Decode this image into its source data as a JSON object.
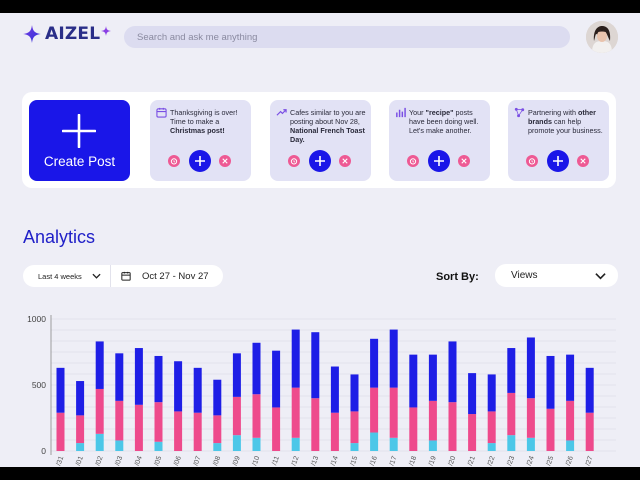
{
  "header": {
    "brand": "AIZEL",
    "search_placeholder": "Search and ask me anything"
  },
  "icons": {
    "logo": "sparkle-logo-icon",
    "avatar": "user-avatar",
    "create": "plus-icon",
    "alarm": "alarm-clock-icon",
    "add": "plus-icon",
    "dismiss": "close-icon",
    "calendar": "calendar-icon",
    "chevron": "chevron-down-icon"
  },
  "colors": {
    "brand_blue": "#1a16e8",
    "accent_pink": "#ee5a94",
    "title_blue": "#2020c8",
    "series_blue": "#1e1ee6",
    "series_pink": "#ee4a8c",
    "series_cyan": "#4cc7e8"
  },
  "create_post": {
    "label": "Create Post"
  },
  "suggestions": [
    {
      "icon": "calendar-icon",
      "pre": "Thanksgiving is over! Time to make a ",
      "bold": "Christmas post!",
      "post": ""
    },
    {
      "icon": "trending-up-icon",
      "pre": "Cafes similar to you are posting about Nov 28, ",
      "bold": "National French Toast Day.",
      "post": ""
    },
    {
      "icon": "bar-chart-icon",
      "pre": "Your ",
      "bold": "\"recipe\"",
      "post": " posts have been doing well. Let's make another."
    },
    {
      "icon": "network-icon",
      "pre": "Partnering with ",
      "bold": "other brands",
      "post": " can help promote your business."
    }
  ],
  "analytics": {
    "title": "Analytics",
    "period": "Last 4 weeks",
    "date_range": "Oct 27 - Nov 27",
    "sort_label": "Sort By:",
    "sort_value": "Views"
  },
  "chart_data": {
    "type": "bar",
    "stacked": true,
    "ylim": [
      0,
      1000
    ],
    "yticks": [
      0,
      500,
      1000
    ],
    "grid": true,
    "categories": [
      "/31",
      "/01",
      "/02",
      "/03",
      "/04",
      "/05",
      "/06",
      "/07",
      "/08",
      "/09",
      "/10",
      "/11",
      "/12",
      "/13",
      "/14",
      "/15",
      "/16",
      "/17",
      "/18",
      "/19",
      "/20",
      "/21",
      "/22",
      "/23",
      "/24",
      "/25",
      "/26",
      "/27"
    ],
    "series": [
      {
        "color": "#4cc7e8",
        "values": [
          0,
          60,
          130,
          80,
          0,
          70,
          0,
          0,
          60,
          120,
          100,
          0,
          100,
          0,
          0,
          60,
          140,
          100,
          0,
          80,
          0,
          0,
          60,
          120,
          100,
          0,
          80,
          0
        ]
      },
      {
        "color": "#ee4a8c",
        "values": [
          290,
          210,
          340,
          300,
          350,
          300,
          300,
          290,
          210,
          290,
          330,
          330,
          380,
          400,
          290,
          240,
          340,
          380,
          330,
          300,
          370,
          280,
          240,
          320,
          300,
          320,
          300,
          290
        ]
      },
      {
        "color": "#1e1ee6",
        "values": [
          340,
          260,
          360,
          360,
          430,
          350,
          380,
          340,
          270,
          330,
          390,
          430,
          440,
          500,
          350,
          280,
          370,
          440,
          400,
          350,
          460,
          310,
          280,
          340,
          460,
          400,
          350,
          340
        ]
      }
    ]
  }
}
